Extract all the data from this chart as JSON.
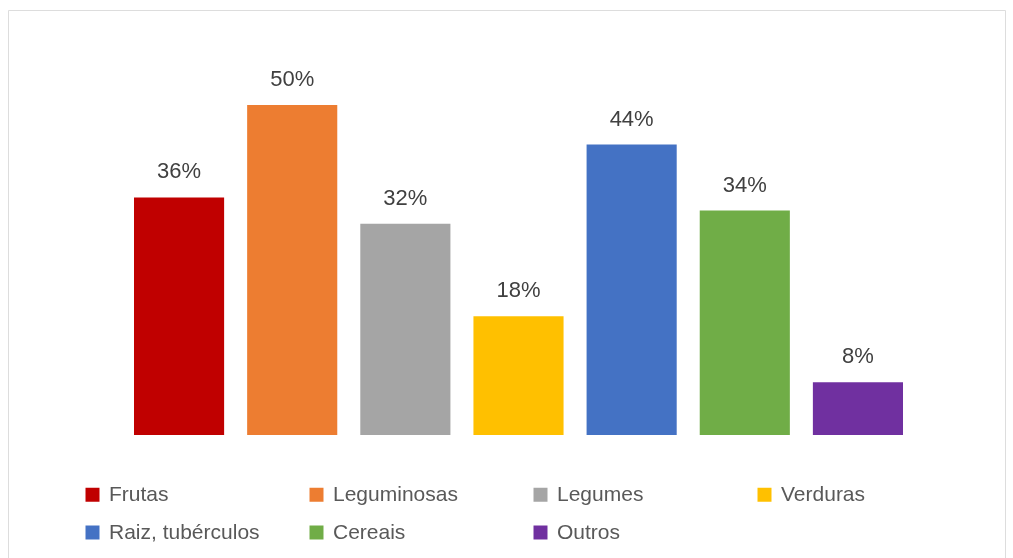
{
  "chart_data": {
    "type": "bar",
    "categories": [
      null
    ],
    "series": [
      {
        "name": "Frutas",
        "color": "#c00000",
        "values": [
          36
        ],
        "value_labels": [
          "36%"
        ]
      },
      {
        "name": "Leguminosas",
        "color": "#ed7d31",
        "values": [
          50
        ],
        "value_labels": [
          "50%"
        ]
      },
      {
        "name": "Legumes",
        "color": "#a5a5a5",
        "values": [
          32
        ],
        "value_labels": [
          "32%"
        ]
      },
      {
        "name": "Verduras",
        "color": "#ffc000",
        "values": [
          18
        ],
        "value_labels": [
          "18%"
        ]
      },
      {
        "name": "Raiz, tubérculos",
        "color": "#4472c4",
        "values": [
          44
        ],
        "value_labels": [
          "44%"
        ]
      },
      {
        "name": "Cereais",
        "color": "#70ad47",
        "values": [
          34
        ],
        "value_labels": [
          "34%"
        ]
      },
      {
        "name": "Outros",
        "color": "#7030a0",
        "values": [
          8
        ],
        "value_labels": [
          "8%"
        ]
      }
    ],
    "legend": "bottom",
    "tick_labels": false
  }
}
